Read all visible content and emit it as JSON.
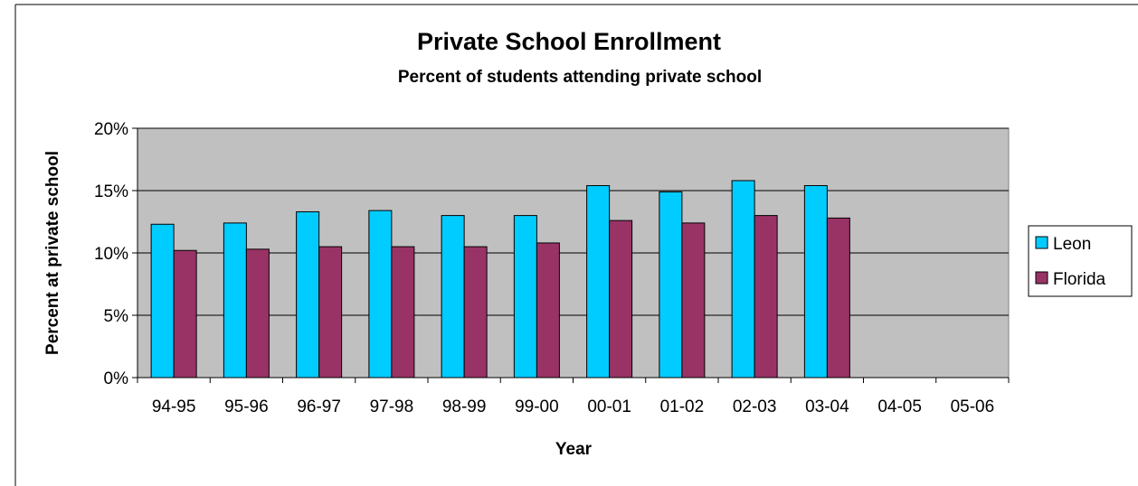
{
  "chart_data": {
    "type": "bar",
    "title": "Private School Enrollment",
    "subtitle": "Percent of students attending private school",
    "xlabel": "Year",
    "ylabel": "Percent at private school",
    "categories": [
      "94-95",
      "95-96",
      "96-97",
      "97-98",
      "98-99",
      "99-00",
      "00-01",
      "01-02",
      "02-03",
      "03-04",
      "04-05",
      "05-06"
    ],
    "series": [
      {
        "name": "Leon",
        "color": "#00ccff",
        "values": [
          12.3,
          12.4,
          13.3,
          13.4,
          13.0,
          13.0,
          15.4,
          14.9,
          15.8,
          15.4,
          null,
          null
        ]
      },
      {
        "name": "Florida",
        "color": "#993366",
        "values": [
          10.2,
          10.3,
          10.5,
          10.5,
          10.5,
          10.8,
          12.6,
          12.4,
          13.0,
          12.8,
          null,
          null
        ]
      }
    ],
    "ylim": [
      0,
      20
    ],
    "yticks": [
      "0%",
      "5%",
      "10%",
      "15%",
      "20%"
    ],
    "ytick_values": [
      0,
      5,
      10,
      15,
      20
    ],
    "grid": true,
    "plot_background": "#c0c0c0",
    "legend_position": "right"
  }
}
